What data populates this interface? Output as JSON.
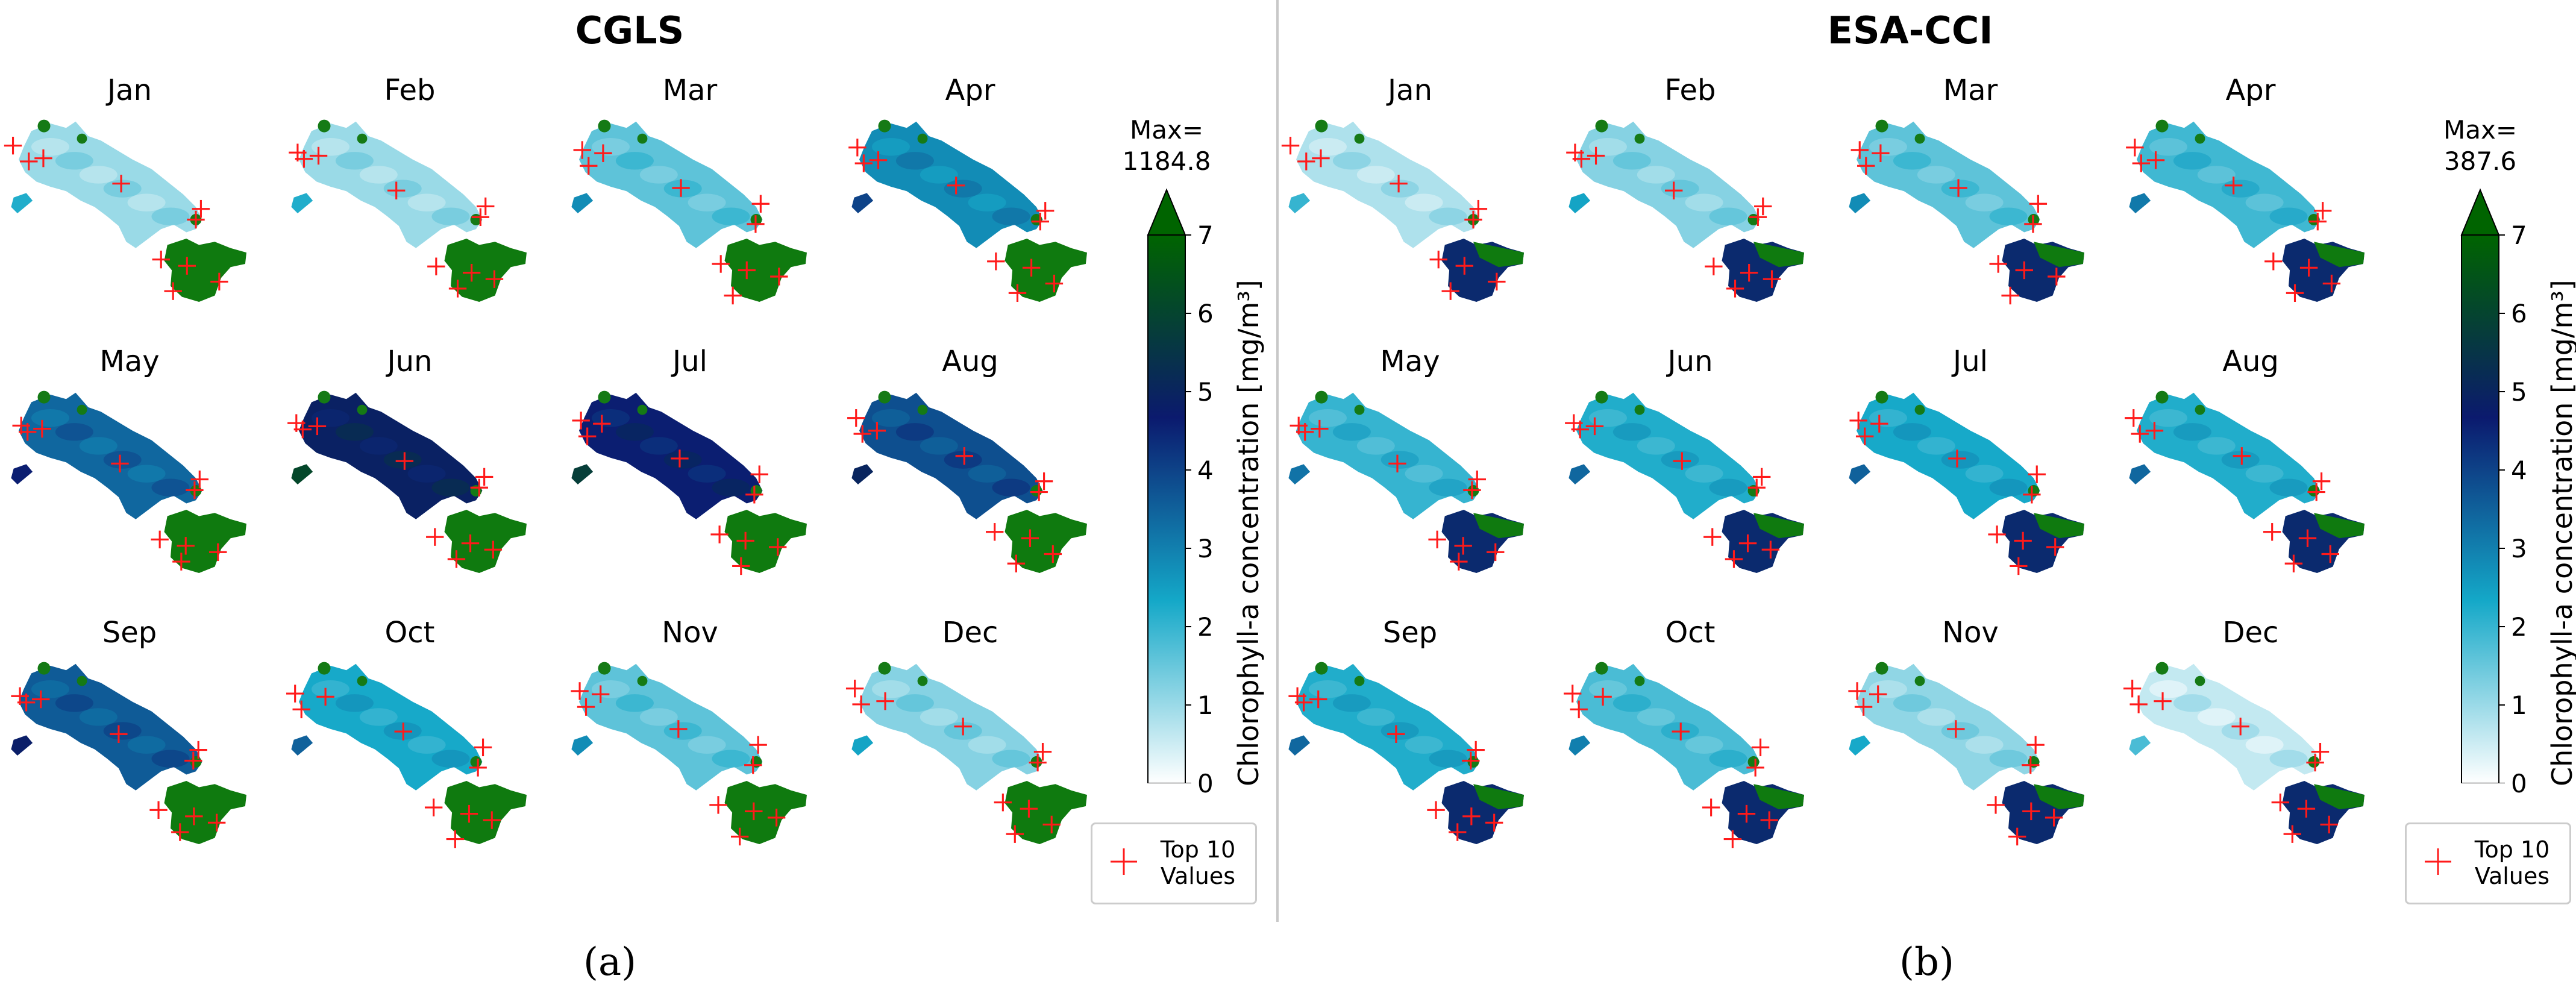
{
  "figure": {
    "sublabels": [
      "(a)",
      "(b)"
    ],
    "colorbar_label": "Chlorophyll-a concentration",
    "colorbar_unit": "[mg/m³]",
    "legend_label_line1": "Top 10",
    "legend_label_line2": "Values",
    "colorbar_ticks": [
      "0",
      "1",
      "2",
      "3",
      "4",
      "5",
      "6",
      "7"
    ]
  },
  "chart_data": [
    {
      "type": "heatmap",
      "title": "CGLS",
      "max_label_line1": "Max=",
      "max_label_line2": "1184.8",
      "colorbar": {
        "min": 0,
        "max": 7,
        "extend": "max",
        "cmap": [
          "#ffffff",
          "#14a8c8",
          "#0b1a6e",
          "#006400"
        ],
        "label": "Chlorophyll-a concentration [mg/m³]"
      },
      "months": [
        "Jan",
        "Feb",
        "Mar",
        "Apr",
        "May",
        "Jun",
        "Jul",
        "Aug",
        "Sep",
        "Oct",
        "Nov",
        "Dec"
      ],
      "approx_mean_concentration": [
        1.0,
        1.0,
        1.6,
        2.8,
        3.4,
        4.9,
        4.6,
        3.8,
        3.6,
        2.3,
        1.6,
        1.2
      ],
      "legend": "Top 10 Values"
    },
    {
      "type": "heatmap",
      "title": "ESA-CCI",
      "max_label_line1": "Max=",
      "max_label_line2": "387.6",
      "colorbar": {
        "min": 0,
        "max": 7,
        "extend": "max",
        "cmap": [
          "#ffffff",
          "#14a8c8",
          "#0b1a6e",
          "#006400"
        ],
        "label": "Chlorophyll-a concentration [mg/m³]"
      },
      "months": [
        "Jan",
        "Feb",
        "Mar",
        "Apr",
        "May",
        "Jun",
        "Jul",
        "Aug",
        "Sep",
        "Oct",
        "Nov",
        "Dec"
      ],
      "approx_mean_concentration": [
        0.8,
        1.2,
        1.6,
        1.9,
        2.0,
        2.2,
        2.3,
        2.2,
        2.2,
        1.8,
        1.1,
        0.6
      ],
      "legend": "Top 10 Values"
    }
  ]
}
